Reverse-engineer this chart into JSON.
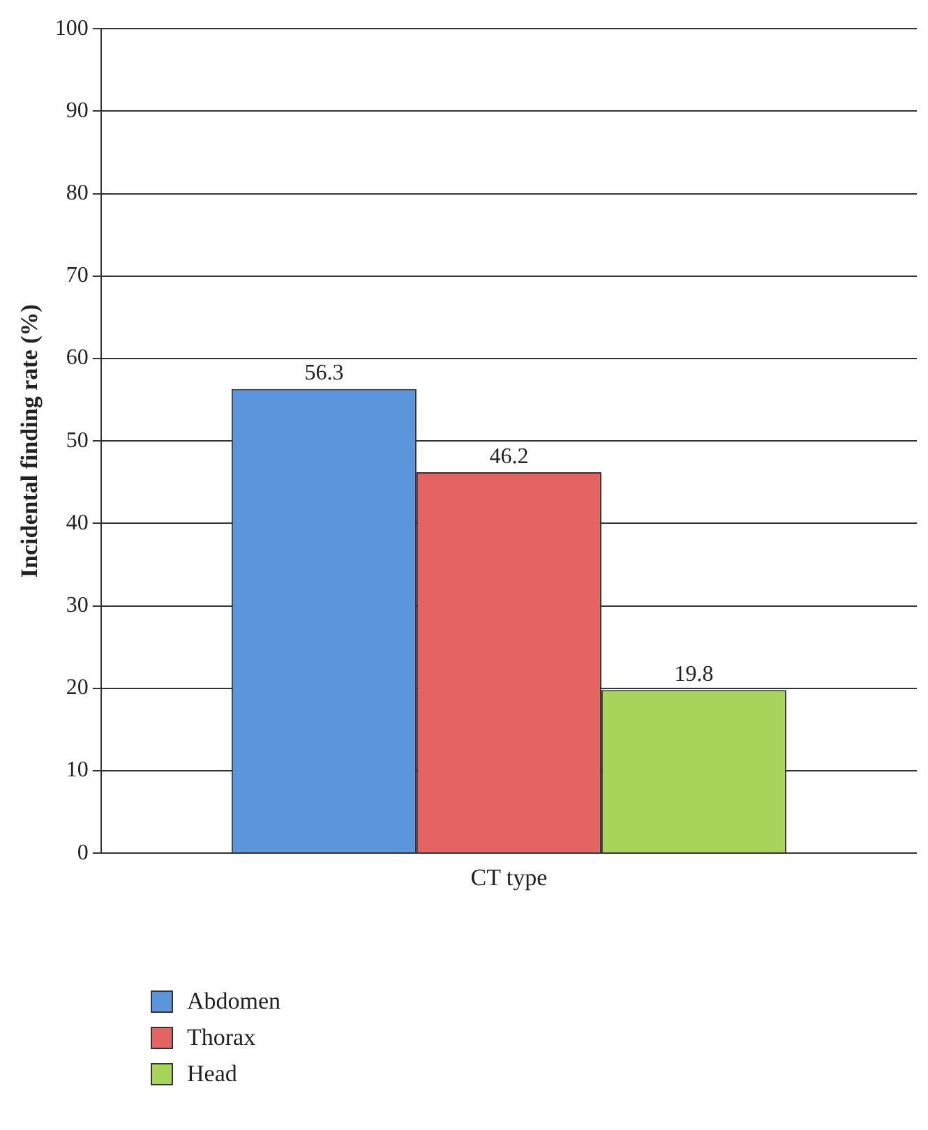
{
  "chart_data": {
    "type": "bar",
    "categories": [
      "CT type"
    ],
    "ylabel": "Incidental finding rate (%)",
    "series": [
      {
        "name": "Abdomen",
        "color": "#5b95dc",
        "values": [
          56.3
        ]
      },
      {
        "name": "Thorax",
        "color": "#e46464",
        "values": [
          46.2
        ]
      },
      {
        "name": "Head",
        "color": "#a8d45c",
        "values": [
          19.8
        ]
      }
    ],
    "ylim": [
      0,
      100
    ],
    "yticks": [
      0,
      10,
      20,
      30,
      40,
      50,
      60,
      70,
      80,
      90,
      100
    ],
    "grid": "y",
    "legend": "bottom left",
    "data_labels": true
  }
}
